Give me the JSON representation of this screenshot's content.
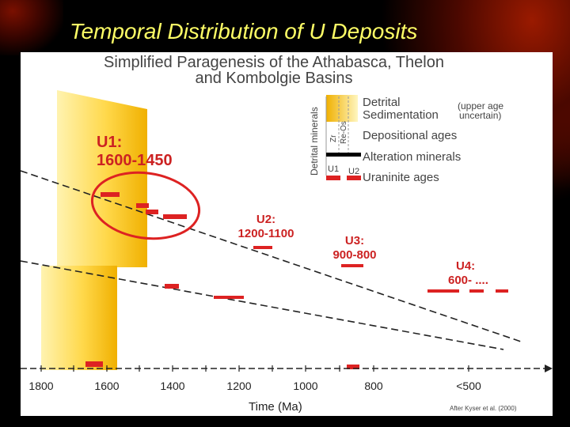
{
  "slide": {
    "title": "Temporal Distribution of U Deposits"
  },
  "figure": {
    "title_line1": "Simplified Paragenesis of the Athabasca, Thelon",
    "title_line2": "and Kombolgie Basins",
    "credit": "After Kyser et al. (2000)",
    "x_axis_title": "Time (Ma)"
  },
  "legend": {
    "detrital_minerals": "Detrital minerals",
    "zr": "Zr",
    "re_os": "Re-Os",
    "u1": "U1",
    "u2": "U2",
    "detrital_sedimentation_1": "Detrital",
    "detrital_sedimentation_2": "Sedimentation",
    "upper_age_1": "(upper age",
    "upper_age_2": "uncertain)",
    "depositional_ages": "Depositional ages",
    "alteration_minerals": "Alteration minerals",
    "uraninite_ages": "Uraninite ages"
  },
  "labels": {
    "u1_line1": "U1:",
    "u1_line2": "1600-1450",
    "u2_line1": "U2:",
    "u2_line2": "1200-1100",
    "u3_line1": "U3:",
    "u3_line2": "900-800",
    "u4_line1": "U4:",
    "u4_line2": "600- ...."
  },
  "axis": {
    "ticks": [
      "1800",
      "1600",
      "1400",
      "1200",
      "1000",
      "800",
      "<500"
    ]
  },
  "colors": {
    "uraninite": "#dd2222",
    "sediment_light": "#ffe680",
    "sediment_dark": "#f2b500",
    "circle": "#dd2222"
  }
}
